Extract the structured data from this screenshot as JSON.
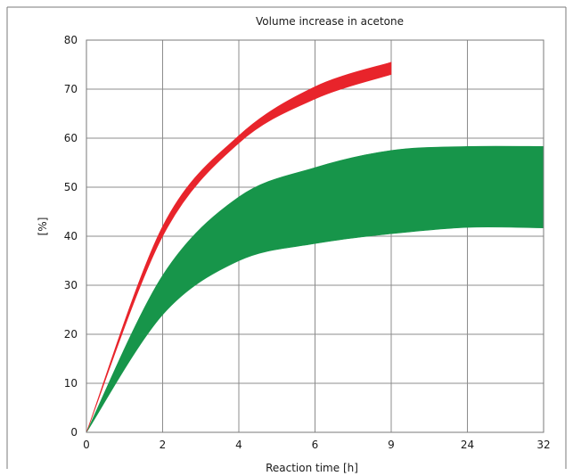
{
  "chart_data": {
    "type": "area",
    "title": "Volume increase in acetone",
    "xlabel": "Reaction time [h]",
    "ylabel": "[%]",
    "x_ticks": [
      "0",
      "2",
      "4",
      "6",
      "9",
      "24",
      "32"
    ],
    "y_ticks": [
      "0",
      "10",
      "20",
      "30",
      "40",
      "50",
      "60",
      "70",
      "80"
    ],
    "ylim": [
      0,
      80
    ],
    "grid": true,
    "series": [
      {
        "color": "#17954a",
        "x": [
          "0",
          "2",
          "4",
          "6",
          "9",
          "24",
          "32"
        ],
        "upper": [
          0,
          32,
          48,
          54,
          57.5,
          58.3,
          58.3
        ],
        "lower": [
          0,
          24,
          35,
          38.5,
          40.5,
          41.8,
          41.7
        ]
      },
      {
        "color": "#e8242b",
        "x": [
          "0",
          "2",
          "4",
          "6",
          "9"
        ],
        "upper": [
          0,
          42,
          60.5,
          70.5,
          75.5
        ],
        "lower": [
          0,
          40,
          59,
          68,
          73
        ]
      }
    ]
  }
}
